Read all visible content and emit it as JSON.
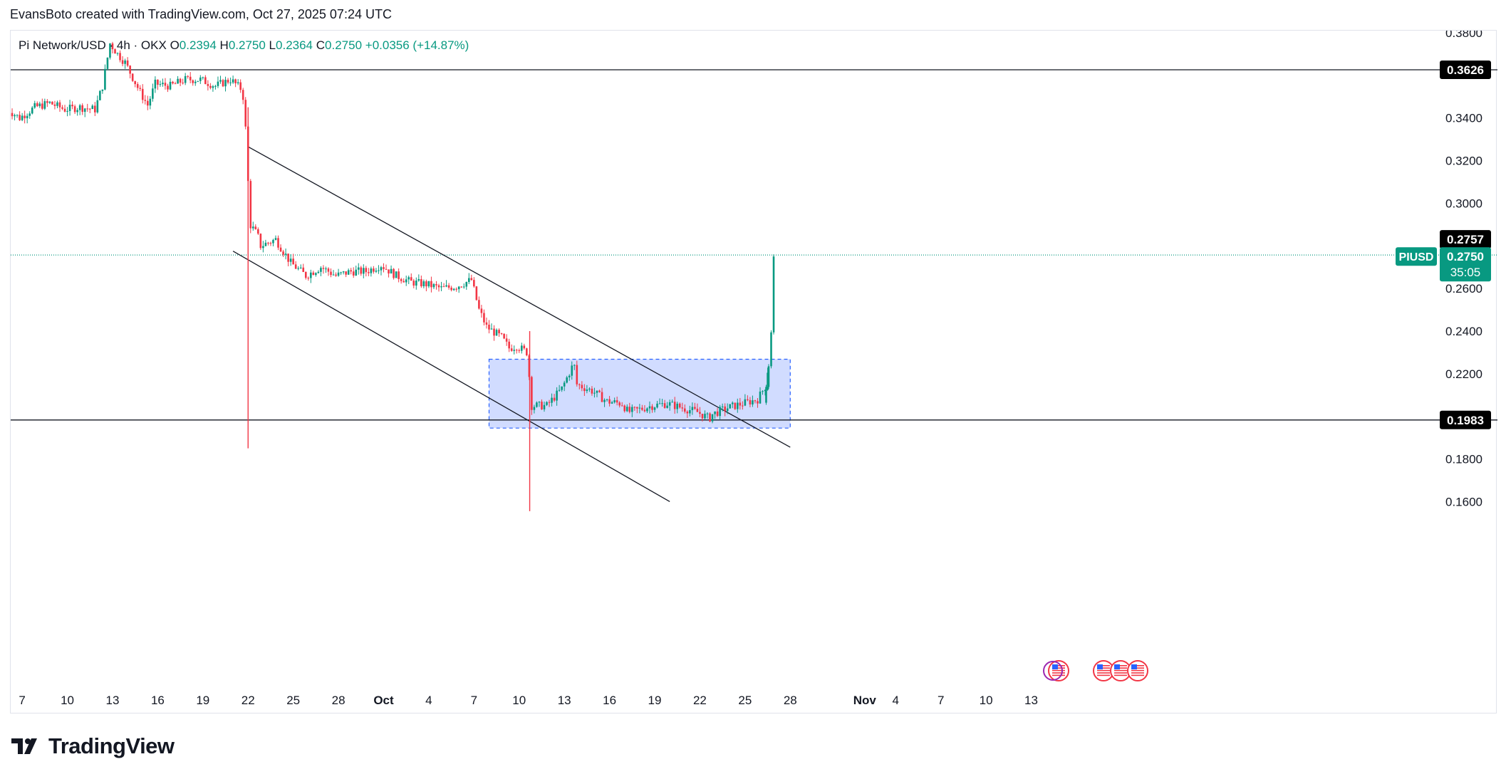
{
  "header": {
    "credit": "EvansBoto created with TradingView.com, Oct 27, 2025 07:24 UTC",
    "symbol": "Pi Network/USD · 4h · OKX",
    "ohlc": [
      {
        "label": "O",
        "value": "0.2394"
      },
      {
        "label": "H",
        "value": "0.2750"
      },
      {
        "label": "L",
        "value": "0.2364"
      },
      {
        "label": "C",
        "value": "0.2750"
      }
    ],
    "change": "+0.0356 (+14.87%)"
  },
  "branding": {
    "logo_text": "TradingView",
    "logo_icon": "tradingview-logo-icon"
  },
  "colors": {
    "up": "#089981",
    "down": "#f23645",
    "zone_fill": "#c9d6ff",
    "zone_border": "#2962ff",
    "line": "#131722",
    "badge_green": "#089981",
    "badge_black": "#000000"
  },
  "chart_data": {
    "type": "candlestick",
    "symbol": "PIUSD",
    "timeframe": "4h",
    "y_axis": {
      "range": [
        0.155,
        0.3845
      ],
      "ticks": [
        "0.3800",
        "0.3400",
        "0.3200",
        "0.3000",
        "0.2600",
        "0.2400",
        "0.2200",
        "0.1800",
        "0.1600"
      ]
    },
    "x_axis": {
      "ticks": [
        "7",
        "10",
        "13",
        "16",
        "19",
        "22",
        "25",
        "28",
        "Oct",
        "4",
        "7",
        "10",
        "13",
        "16",
        "19",
        "22",
        "25",
        "28",
        "Nov",
        "4",
        "7",
        "10",
        "13"
      ]
    },
    "price_labels": [
      {
        "value": "0.3626",
        "style": "black",
        "line": "horizontal"
      },
      {
        "value": "0.2757",
        "style": "black",
        "line": "dotted"
      },
      {
        "value": "0.1983",
        "style": "black",
        "line": "horizontal"
      }
    ],
    "last_price": {
      "symbol_tag": "PIUSD",
      "value": "0.2750",
      "countdown": "35:05"
    },
    "trendlines": [
      {
        "from": [
          "Sep 22",
          0.3265
        ],
        "to": [
          "Oct 28",
          0.1855
        ]
      },
      {
        "from": [
          "Sep 21",
          0.2775
        ],
        "to": [
          "Oct 20",
          0.16
        ]
      }
    ],
    "zone": {
      "from": "Oct 8",
      "to": "Oct 28",
      "top": 0.2268,
      "bottom": 0.1945
    },
    "price_path": [
      [
        "Sep 6",
        0.345
      ],
      [
        "Sep 7",
        0.34
      ],
      [
        "Sep 8",
        0.345
      ],
      [
        "Sep 9",
        0.347
      ],
      [
        "Sep 10",
        0.344
      ],
      [
        "Sep 11",
        0.345
      ],
      [
        "Sep 12",
        0.344
      ],
      [
        "Sep 12.5",
        0.355
      ],
      [
        "Sep 13",
        0.375
      ],
      [
        "Sep 13.5",
        0.37
      ],
      [
        "Sep 14",
        0.366
      ],
      [
        "Sep 15",
        0.352
      ],
      [
        "Sep 15.5",
        0.346
      ],
      [
        "Sep 16",
        0.356
      ],
      [
        "Sep 17",
        0.355
      ],
      [
        "Sep 18",
        0.358
      ],
      [
        "Sep 19",
        0.358
      ],
      [
        "Sep 20",
        0.355
      ],
      [
        "Sep 21",
        0.358
      ],
      [
        "Sep 21.8",
        0.353
      ],
      [
        "Sep 22",
        0.335
      ],
      [
        "Sep 22.3",
        0.29
      ],
      [
        "Sep 22.8",
        0.285
      ],
      [
        "Sep 23",
        0.28
      ],
      [
        "Sep 24",
        0.283
      ],
      [
        "Sep 25",
        0.272
      ],
      [
        "Sep 26",
        0.266
      ],
      [
        "Sep 27",
        0.27
      ],
      [
        "Sep 28",
        0.266
      ],
      [
        "Sep 29",
        0.268
      ],
      [
        "Sep 30",
        0.268
      ],
      [
        "Oct 1",
        0.271
      ],
      [
        "Oct 2",
        0.266
      ],
      [
        "Oct 3",
        0.263
      ],
      [
        "Oct 4",
        0.262
      ],
      [
        "Oct 5",
        0.26
      ],
      [
        "Oct 6",
        0.261
      ],
      [
        "Oct 7",
        0.264
      ],
      [
        "Oct 7.5",
        0.25
      ],
      [
        "Oct 8",
        0.242
      ],
      [
        "Oct 9",
        0.237
      ],
      [
        "Oct 9.5",
        0.232
      ],
      [
        "Oct 10",
        0.233
      ],
      [
        "Oct 10.7",
        0.23
      ],
      [
        "Oct 11",
        0.205
      ],
      [
        "Oct 12",
        0.205
      ],
      [
        "Oct 13",
        0.213
      ],
      [
        "Oct 13.8",
        0.225
      ],
      [
        "Oct 14",
        0.215
      ],
      [
        "Oct 15",
        0.212
      ],
      [
        "Oct 16",
        0.207
      ],
      [
        "Oct 17",
        0.206
      ],
      [
        "Oct 17.4",
        0.202
      ],
      [
        "Oct 18",
        0.203
      ],
      [
        "Oct 19",
        0.205
      ],
      [
        "Oct 20",
        0.206
      ],
      [
        "Oct 21",
        0.204
      ],
      [
        "Oct 22",
        0.202
      ],
      [
        "Oct 22.8",
        0.199
      ],
      [
        "Oct 23",
        0.201
      ],
      [
        "Oct 24",
        0.204
      ],
      [
        "Oct 25",
        0.206
      ],
      [
        "Oct 26",
        0.208
      ],
      [
        "Oct 26.5",
        0.214
      ],
      [
        "Oct 26.7",
        0.223
      ],
      [
        "Oct 26.9",
        0.239
      ],
      [
        "Oct 27",
        0.275
      ]
    ],
    "wicks": [
      {
        "at": "Sep 22",
        "low": 0.185
      },
      {
        "at": "Oct 10.7",
        "low": 0.1555
      }
    ],
    "events": [
      "us-flag-event-icon",
      "us-flag-event-icon",
      "us-flag-event-icon",
      "us-flag-event-icon"
    ]
  }
}
